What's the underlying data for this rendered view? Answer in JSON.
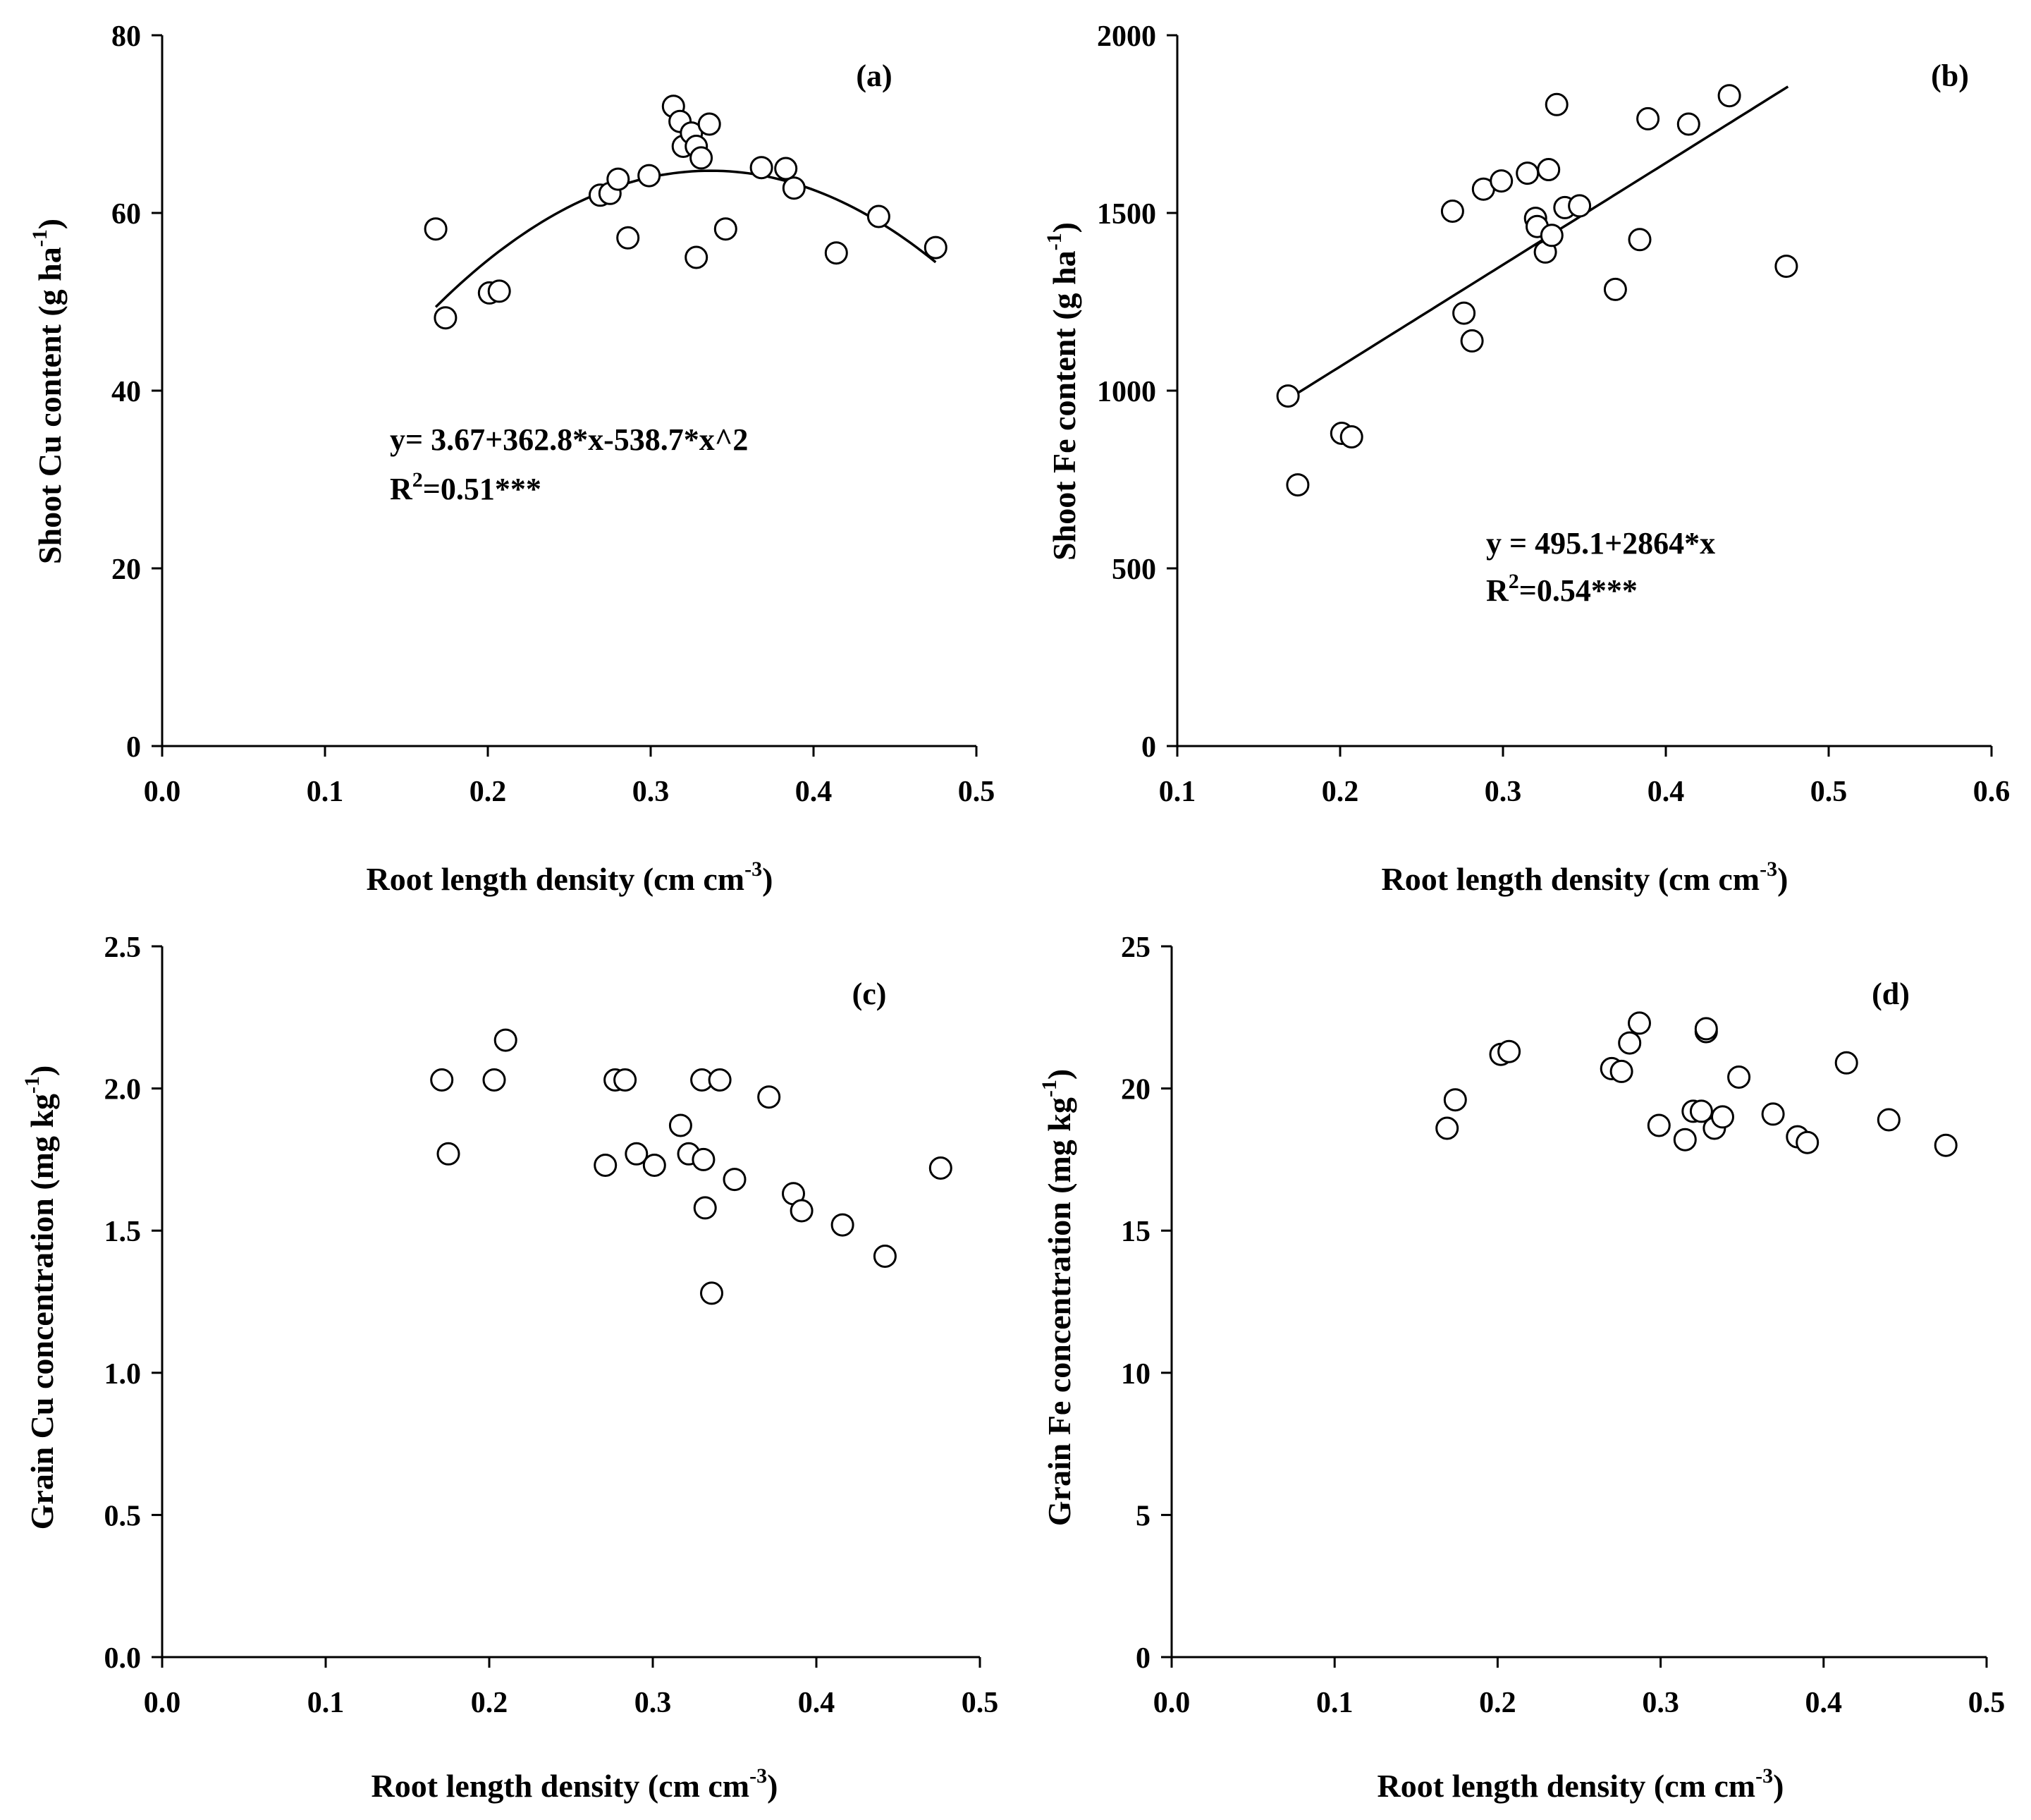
{
  "chart_data": [
    {
      "id": "a",
      "type": "scatter",
      "panel_label": "(a)",
      "xlabel": "Root length density (cm cm",
      "xlabel_sup": "-3",
      "xlabel_end": ")",
      "ylabel": "Shoot Cu content (g ha",
      "ylabel_sup": "-1",
      "ylabel_end": ")",
      "xlim": [
        0.0,
        0.5
      ],
      "ylim": [
        0,
        80
      ],
      "xticks": [
        "0.0",
        "0.1",
        "0.2",
        "0.3",
        "0.4",
        "0.5"
      ],
      "yticks": [
        "0",
        "20",
        "40",
        "60",
        "80"
      ],
      "fit": {
        "type": "quadratic",
        "coef": [
          3.67,
          362.8,
          -538.7
        ],
        "xrange": [
          0.168,
          0.475
        ]
      },
      "equation_line1": "y= 3.67+362.8*x-538.7*x^2",
      "r2_prefix": "R",
      "r2_sup": "2",
      "r2_value": "=0.51***",
      "x": [
        0.168,
        0.174,
        0.201,
        0.207,
        0.269,
        0.275,
        0.28,
        0.286,
        0.299,
        0.314,
        0.318,
        0.32,
        0.325,
        0.328,
        0.328,
        0.331,
        0.336,
        0.346,
        0.368,
        0.383,
        0.388,
        0.414,
        0.44,
        0.475
      ],
      "y": [
        58.2,
        48.2,
        51.0,
        51.2,
        62.0,
        62.2,
        63.8,
        57.2,
        64.2,
        72.0,
        70.3,
        67.5,
        69.0,
        55.0,
        67.5,
        66.2,
        70.0,
        58.2,
        65.1,
        65.0,
        62.8,
        55.5,
        59.6,
        56.1
      ]
    },
    {
      "id": "b",
      "type": "scatter",
      "panel_label": "(b)",
      "xlabel": "Root length density (cm cm",
      "xlabel_sup": "-3",
      "xlabel_end": ")",
      "ylabel": "Shoot Fe content (g ha",
      "ylabel_sup": "-1",
      "ylabel_end": ")",
      "xlim": [
        0.1,
        0.6
      ],
      "ylim": [
        0,
        2000
      ],
      "xticks": [
        "0.1",
        "0.2",
        "0.3",
        "0.4",
        "0.5",
        "0.6"
      ],
      "yticks": [
        "0",
        "500",
        "1000",
        "1500",
        "2000"
      ],
      "fit": {
        "type": "linear",
        "coef": [
          495.1,
          2864
        ],
        "xrange": [
          0.168,
          0.475
        ]
      },
      "equation_line1": "y = 495.1+2864*x",
      "r2_prefix": "R",
      "r2_sup": "2",
      "r2_value": "=0.54***",
      "x": [
        0.168,
        0.174,
        0.201,
        0.207,
        0.269,
        0.276,
        0.281,
        0.288,
        0.299,
        0.315,
        0.32,
        0.321,
        0.326,
        0.328,
        0.33,
        0.333,
        0.338,
        0.347,
        0.369,
        0.384,
        0.389,
        0.414,
        0.439,
        0.474
      ],
      "y": [
        985,
        735,
        880,
        870,
        1505,
        1218,
        1140,
        1567,
        1590,
        1612,
        1485,
        1462,
        1390,
        1622,
        1437,
        1805,
        1515,
        1520,
        1285,
        1425,
        1765,
        1750,
        1830,
        1350
      ]
    },
    {
      "id": "c",
      "type": "scatter",
      "panel_label": "(c)",
      "xlabel": "Root length density (cm cm",
      "xlabel_sup": "-3",
      "xlabel_end": ")",
      "ylabel": "Grain Cu concentration (mg kg",
      "ylabel_sup": "-1",
      "ylabel_end": ")",
      "xlim": [
        0.0,
        0.5
      ],
      "ylim": [
        0.0,
        2.5
      ],
      "xticks": [
        "0.0",
        "0.1",
        "0.2",
        "0.3",
        "0.4",
        "0.5"
      ],
      "yticks": [
        "0.0",
        "0.5",
        "1.0",
        "1.5",
        "2.0",
        "2.5"
      ],
      "x": [
        0.171,
        0.175,
        0.203,
        0.21,
        0.271,
        0.277,
        0.283,
        0.29,
        0.301,
        0.317,
        0.322,
        0.33,
        0.331,
        0.332,
        0.336,
        0.341,
        0.35,
        0.371,
        0.386,
        0.391,
        0.416,
        0.442,
        0.476
      ],
      "y": [
        2.03,
        1.77,
        2.03,
        2.17,
        1.73,
        2.03,
        2.03,
        1.77,
        1.73,
        1.87,
        1.77,
        2.03,
        1.75,
        1.58,
        1.28,
        2.03,
        1.68,
        1.97,
        1.63,
        1.57,
        1.52,
        1.41,
        1.72
      ]
    },
    {
      "id": "d",
      "type": "scatter",
      "panel_label": "(d)",
      "xlabel": "Root length density (cm cm",
      "xlabel_sup": "-3",
      "xlabel_end": ")",
      "ylabel": "Grain Fe concentration (mg kg",
      "ylabel_sup": "-1",
      "ylabel_end": ")",
      "xlim": [
        0.0,
        0.5
      ],
      "ylim": [
        0,
        25
      ],
      "xticks": [
        "0.0",
        "0.1",
        "0.2",
        "0.3",
        "0.4",
        "0.5"
      ],
      "yticks": [
        "0",
        "5",
        "10",
        "15",
        "20",
        "25"
      ],
      "x": [
        0.169,
        0.174,
        0.202,
        0.207,
        0.27,
        0.276,
        0.281,
        0.287,
        0.299,
        0.315,
        0.32,
        0.325,
        0.328,
        0.328,
        0.333,
        0.338,
        0.348,
        0.369,
        0.384,
        0.39,
        0.414,
        0.44,
        0.475
      ],
      "y": [
        18.6,
        19.6,
        21.2,
        21.3,
        20.7,
        20.6,
        21.6,
        22.3,
        18.7,
        18.2,
        19.2,
        19.2,
        22.0,
        22.1,
        18.6,
        19.0,
        20.4,
        19.1,
        18.3,
        18.1,
        20.9,
        18.9,
        18.0
      ]
    }
  ]
}
